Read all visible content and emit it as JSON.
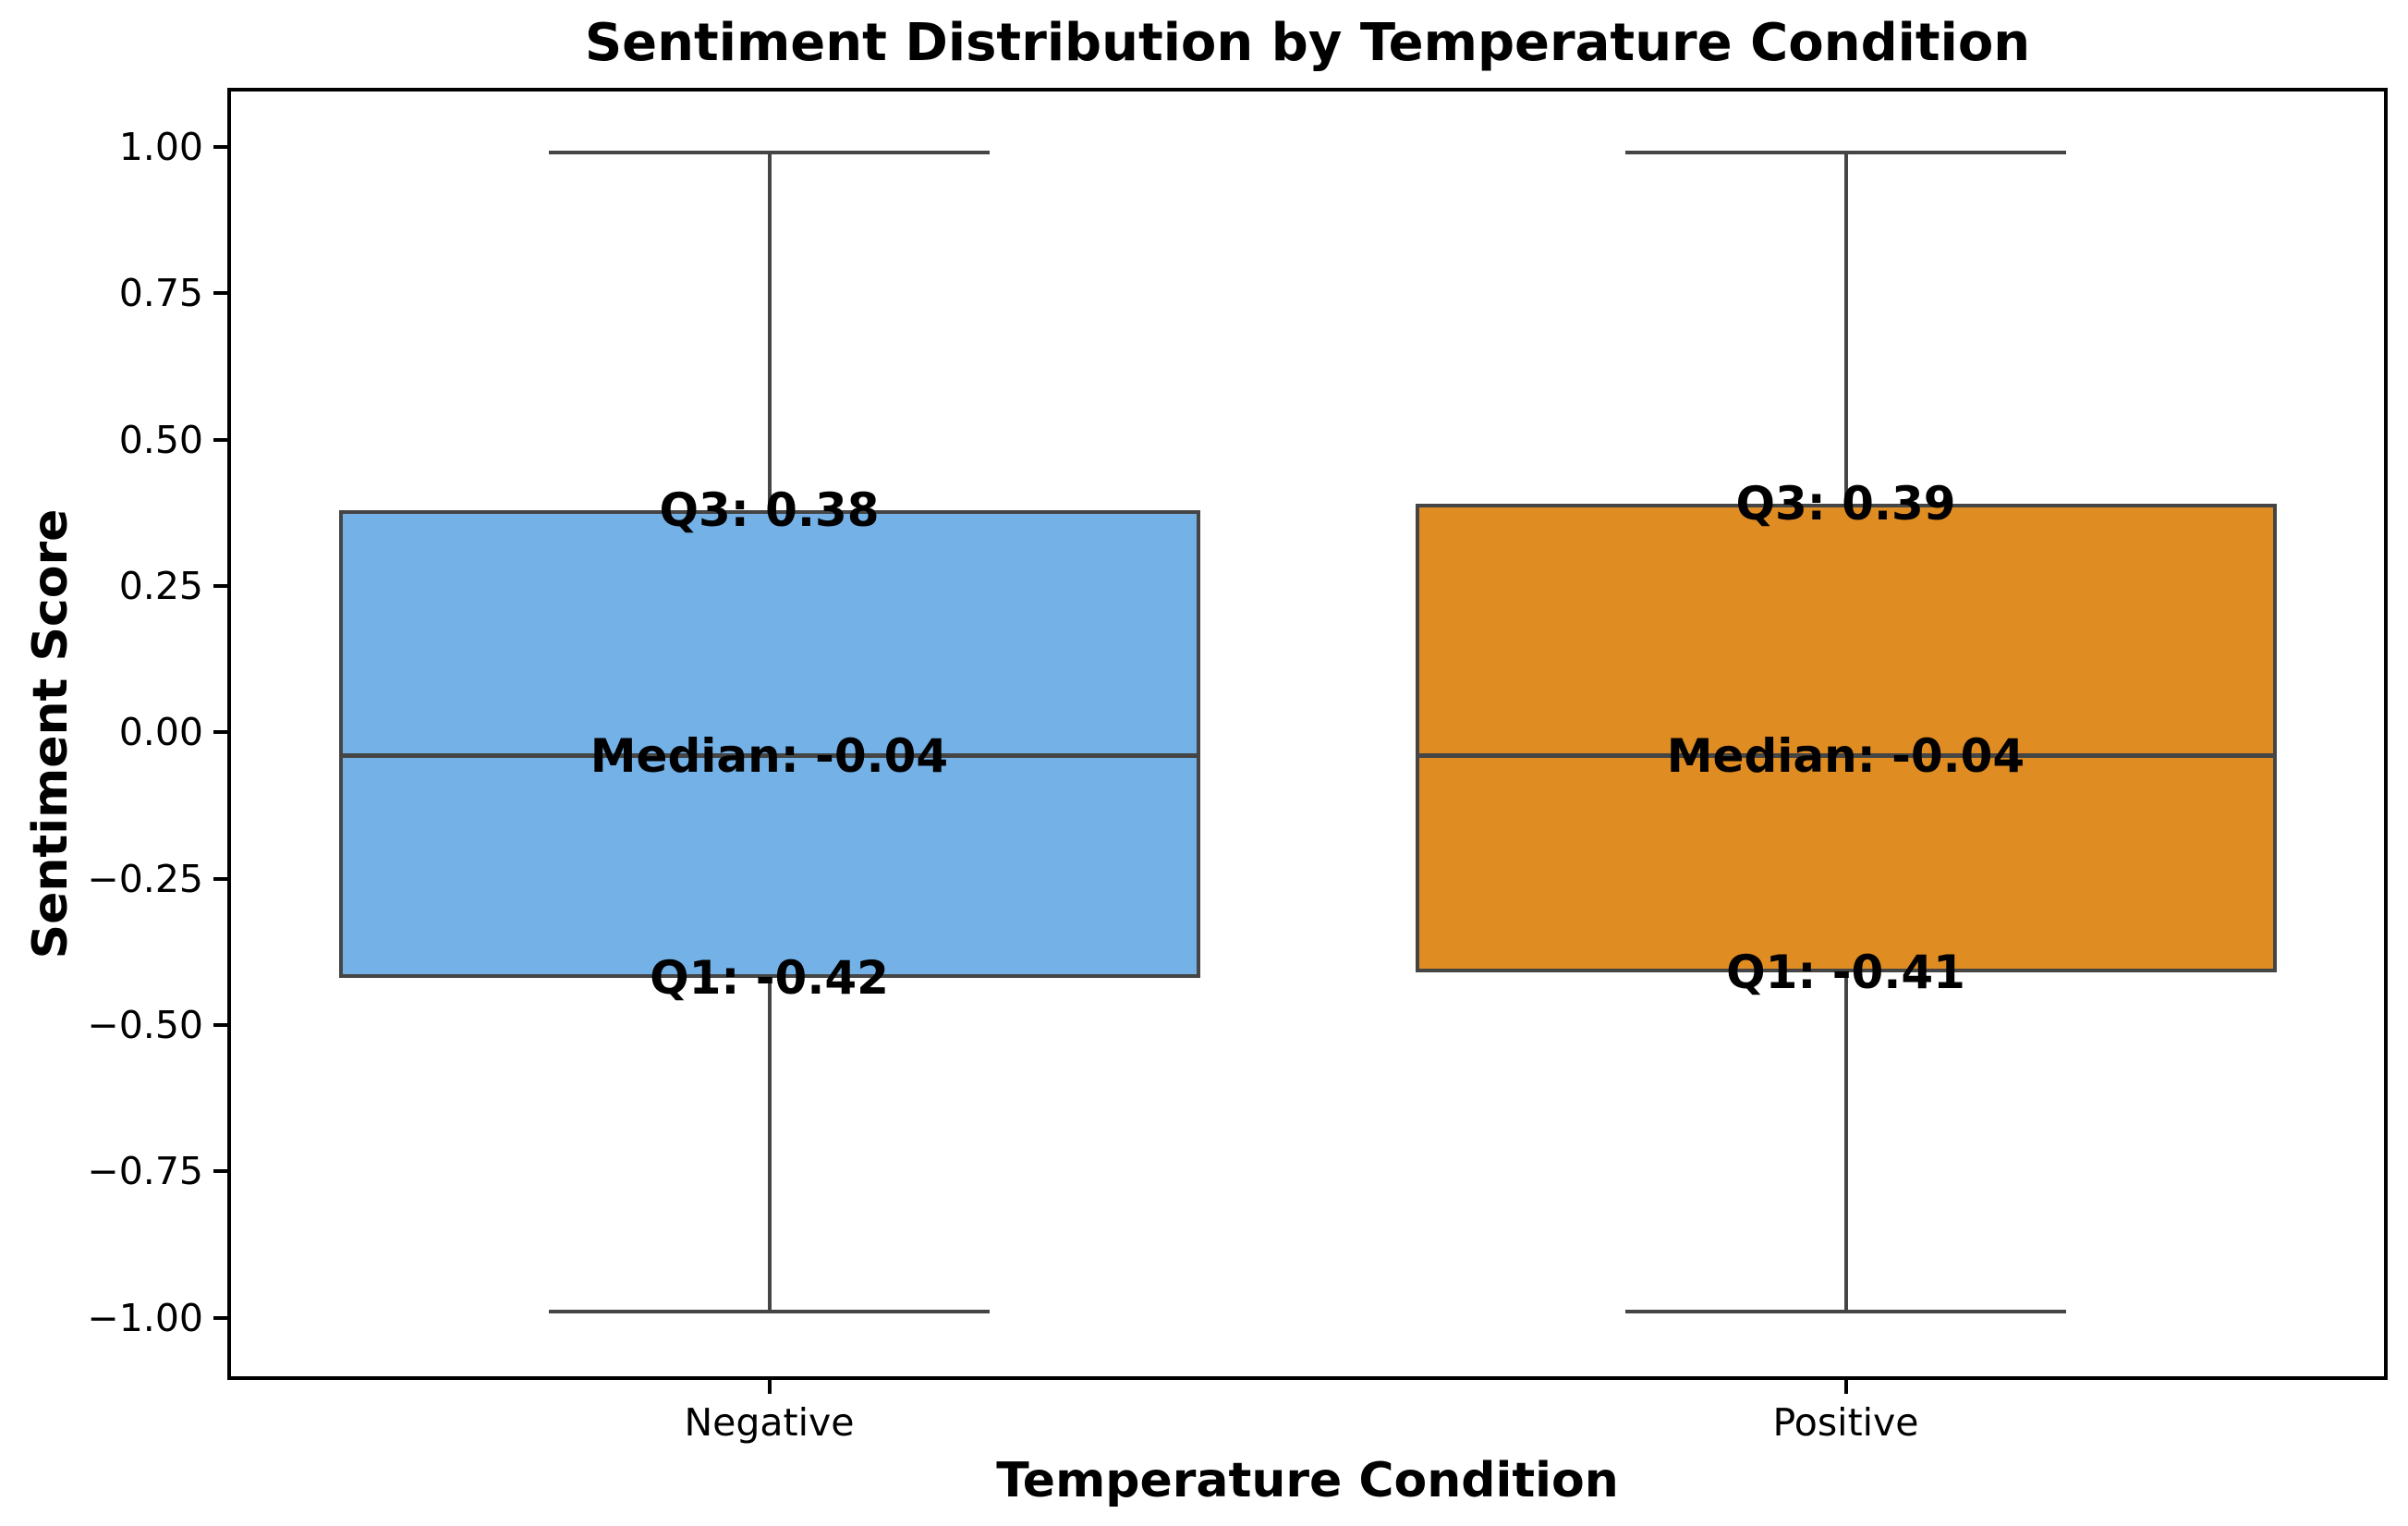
{
  "chart_data": {
    "type": "box",
    "title": "Sentiment Distribution by Temperature Condition",
    "xlabel": "Temperature Condition",
    "ylabel": "Sentiment Score",
    "ylim": [
      -1.1,
      1.095
    ],
    "yticks": [
      1.0,
      0.75,
      0.5,
      0.25,
      0.0,
      -0.25,
      -0.5,
      -0.75,
      -1.0
    ],
    "ytick_labels": [
      "1.00",
      "0.75",
      "0.50",
      "0.25",
      "0.00",
      "−0.25",
      "−0.50",
      "−0.75",
      "−1.00"
    ],
    "categories": [
      "Negative",
      "Positive"
    ],
    "series": [
      {
        "name": "Negative",
        "fill_color": "#74b1e7",
        "q1": -0.42,
        "median": -0.04,
        "q3": 0.38,
        "whisker_low": -0.99,
        "whisker_high": 0.99,
        "annotations": {
          "q3": "Q3: 0.38",
          "median": "Median: -0.04",
          "q1": "Q1: -0.42"
        }
      },
      {
        "name": "Positive",
        "fill_color": "#df8c22",
        "q1": -0.41,
        "median": -0.04,
        "q3": 0.39,
        "whisker_low": -0.99,
        "whisker_high": 0.99,
        "annotations": {
          "q3": "Q3: 0.39",
          "median": "Median: -0.04",
          "q1": "Q1: -0.41"
        }
      }
    ],
    "colors": {
      "box_edge": "#454545",
      "whisker": "#454545",
      "median_line": "#454545",
      "spine": "#000000",
      "background": "#ffffff"
    },
    "grid": false,
    "legend": false
  }
}
